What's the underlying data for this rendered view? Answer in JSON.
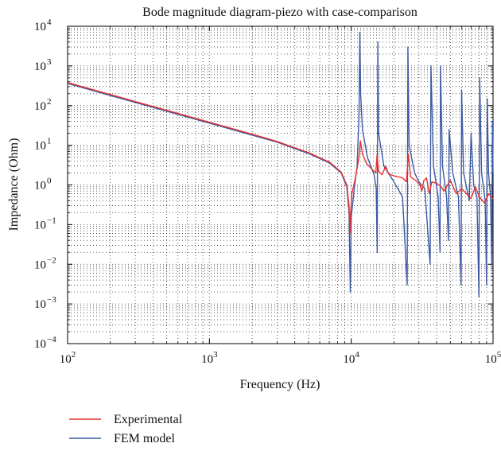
{
  "chart_data": {
    "type": "line",
    "title": "Bode magnitude diagram-piezo with case-comparison",
    "xlabel": "Frequency (Hz)",
    "ylabel": "Impedance (Ohm)",
    "x_scale": "log",
    "y_scale": "log",
    "xlim": [
      100,
      100000
    ],
    "ylim": [
      0.0001,
      10000
    ],
    "x_ticks": [
      {
        "value": 100,
        "base": "10",
        "exp": "2"
      },
      {
        "value": 1000,
        "base": "10",
        "exp": "3"
      },
      {
        "value": 10000,
        "base": "10",
        "exp": "4"
      },
      {
        "value": 100000,
        "base": "10",
        "exp": "5"
      }
    ],
    "y_ticks": [
      {
        "value": 0.0001,
        "base": "10",
        "exp": "−4"
      },
      {
        "value": 0.001,
        "base": "10",
        "exp": "−3"
      },
      {
        "value": 0.01,
        "base": "10",
        "exp": "−2"
      },
      {
        "value": 0.1,
        "base": "10",
        "exp": "−1"
      },
      {
        "value": 1,
        "base": "10",
        "exp": "0"
      },
      {
        "value": 10,
        "base": "10",
        "exp": "1"
      },
      {
        "value": 100,
        "base": "10",
        "exp": "2"
      },
      {
        "value": 1000,
        "base": "10",
        "exp": "3"
      },
      {
        "value": 10000,
        "base": "10",
        "exp": "4"
      }
    ],
    "grid": true,
    "legend_position": "bottom-left, below axes",
    "series": [
      {
        "name": "Experimental",
        "color": "#e8312f",
        "points": [
          [
            100,
            380
          ],
          [
            200,
            190
          ],
          [
            500,
            76
          ],
          [
            1000,
            38
          ],
          [
            2000,
            19
          ],
          [
            3000,
            12.5
          ],
          [
            5000,
            6.5
          ],
          [
            7000,
            3.8
          ],
          [
            8500,
            2.1
          ],
          [
            9300,
            1.0
          ],
          [
            9650,
            0.3
          ],
          [
            9800,
            0.06
          ],
          [
            9900,
            0.2
          ],
          [
            10100,
            0.6
          ],
          [
            10700,
            1.5
          ],
          [
            11300,
            4.5
          ],
          [
            11600,
            13
          ],
          [
            12000,
            6
          ],
          [
            12800,
            3.5
          ],
          [
            14000,
            2.5
          ],
          [
            14900,
            2.0
          ],
          [
            15200,
            5.5
          ],
          [
            15600,
            2.2
          ],
          [
            16500,
            1.8
          ],
          [
            17500,
            3.0
          ],
          [
            18300,
            1.9
          ],
          [
            20000,
            1.7
          ],
          [
            23000,
            1.5
          ],
          [
            24500,
            1.2
          ],
          [
            25300,
            6
          ],
          [
            26200,
            1.6
          ],
          [
            28500,
            1.3
          ],
          [
            30500,
            1.0
          ],
          [
            31500,
            0.7
          ],
          [
            32500,
            1.3
          ],
          [
            34000,
            1.5
          ],
          [
            35500,
            0.6
          ],
          [
            37000,
            1.2
          ],
          [
            40000,
            1.1
          ],
          [
            43000,
            0.9
          ],
          [
            45000,
            0.7
          ],
          [
            47000,
            0.9
          ],
          [
            50000,
            1.3
          ],
          [
            55000,
            0.6
          ],
          [
            60000,
            0.8
          ],
          [
            65000,
            0.6
          ],
          [
            70000,
            0.45
          ],
          [
            75000,
            0.9
          ],
          [
            80000,
            0.5
          ],
          [
            87000,
            0.35
          ],
          [
            93000,
            0.6
          ],
          [
            100000,
            0.45
          ]
        ]
      },
      {
        "name": "FEM model",
        "color": "#3a5aa6",
        "points": [
          [
            100,
            360
          ],
          [
            200,
            180
          ],
          [
            500,
            72
          ],
          [
            1000,
            36
          ],
          [
            2000,
            18
          ],
          [
            3000,
            12
          ],
          [
            5000,
            6.2
          ],
          [
            7000,
            3.6
          ],
          [
            8500,
            2.0
          ],
          [
            9300,
            0.9
          ],
          [
            9650,
            0.2
          ],
          [
            9850,
            0.002
          ],
          [
            10000,
            0.15
          ],
          [
            10500,
            0.8
          ],
          [
            11000,
            3
          ],
          [
            11350,
            60
          ],
          [
            11500,
            7000
          ],
          [
            11650,
            200
          ],
          [
            12000,
            25
          ],
          [
            13000,
            5
          ],
          [
            14500,
            1.8
          ],
          [
            15000,
            0.8
          ],
          [
            15250,
            0.02
          ],
          [
            15400,
            4000
          ],
          [
            15600,
            20
          ],
          [
            17000,
            3
          ],
          [
            20000,
            1.2
          ],
          [
            23000,
            0.5
          ],
          [
            24800,
            0.003
          ],
          [
            25100,
            3000
          ],
          [
            25600,
            10
          ],
          [
            28000,
            2
          ],
          [
            30000,
            1.2
          ],
          [
            33000,
            0.8
          ],
          [
            36000,
            0.01
          ],
          [
            36500,
            1000
          ],
          [
            38000,
            3
          ],
          [
            41000,
            0.5
          ],
          [
            42300,
            0.02
          ],
          [
            42600,
            1000
          ],
          [
            44000,
            3
          ],
          [
            47000,
            0.5
          ],
          [
            48500,
            0.04
          ],
          [
            49000,
            25
          ],
          [
            52000,
            2
          ],
          [
            57000,
            0.5
          ],
          [
            59500,
            0.003
          ],
          [
            60000,
            250
          ],
          [
            62000,
            2
          ],
          [
            68000,
            0.4
          ],
          [
            70000,
            20
          ],
          [
            73000,
            1
          ],
          [
            77000,
            0.5
          ],
          [
            79500,
            0.0015
          ],
          [
            80500,
            500
          ],
          [
            83000,
            2
          ],
          [
            88000,
            0.4
          ],
          [
            90000,
            0.003
          ],
          [
            91000,
            150
          ],
          [
            93000,
            2
          ],
          [
            96000,
            0.5
          ],
          [
            98000,
            0.01
          ],
          [
            99000,
            40
          ],
          [
            100000,
            2
          ]
        ]
      }
    ]
  }
}
